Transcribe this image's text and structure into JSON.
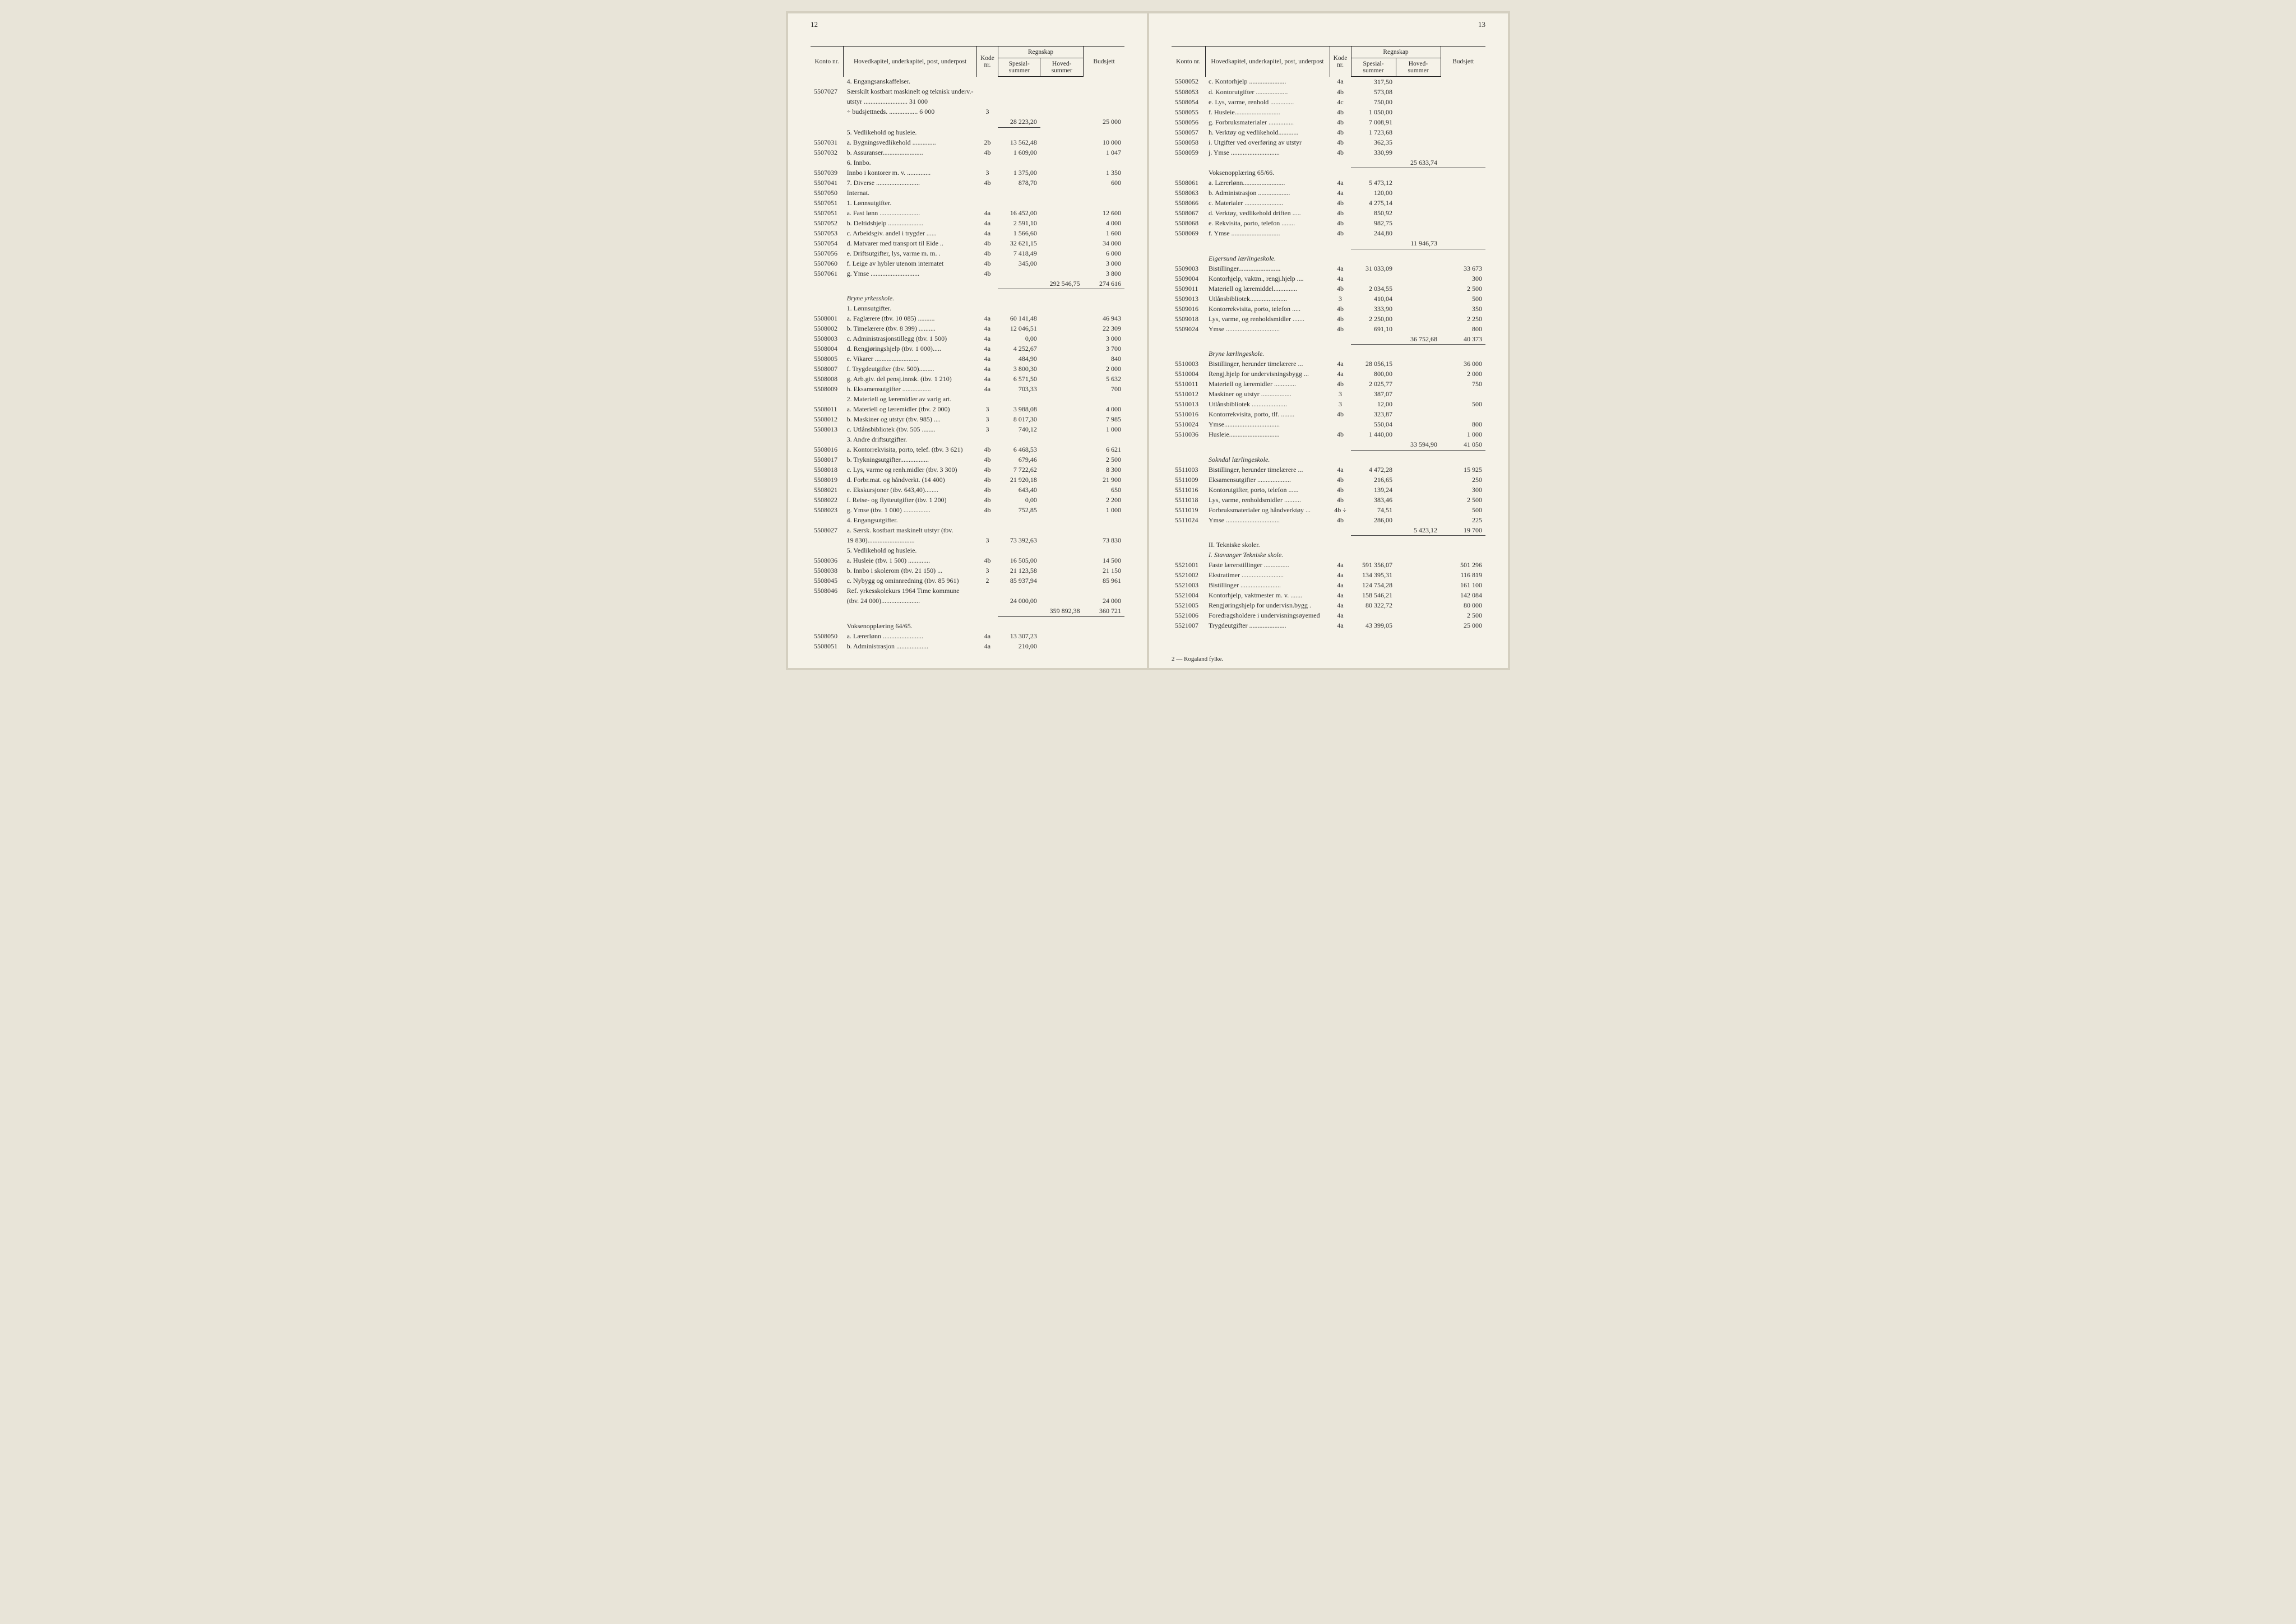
{
  "pageLeftNum": "12",
  "pageRightNum": "13",
  "headers": {
    "konto": "Konto\nnr.",
    "hoved": "Hovedkapitel, underkapitel, post, underpost",
    "kode": "Kode\nnr.",
    "regnskap": "Regnskap",
    "spesial": "Spesial-\nsummer",
    "hovedsum": "Hoved-\nsummer",
    "budsjett": "Budsjett"
  },
  "leftRows": [
    {
      "desc": "4. Engangsanskaffelser.",
      "type": "section"
    },
    {
      "konto": "5507027",
      "desc": "Særskilt kostbart maskinelt og teknisk underv.-",
      "type": "plain"
    },
    {
      "desc": "utstyr .......................... 31 000",
      "type": "plain",
      "indent": 1
    },
    {
      "desc": "÷ budsjettneds. ................. 6 000",
      "kode": "3",
      "type": "plain",
      "indent": 1
    },
    {
      "spesial": "28 223,20",
      "budsjett": "25 000",
      "type": "sum"
    },
    {
      "desc": "5. Vedlikehold og husleie.",
      "type": "section"
    },
    {
      "konto": "5507031",
      "desc": "a. Bygningsvedlikehold ..............",
      "kode": "2b",
      "spesial": "13 562,48",
      "budsjett": "10 000"
    },
    {
      "konto": "5507032",
      "desc": "b. Assuranser........................",
      "kode": "4b",
      "spesial": "1 609,00",
      "budsjett": "1 047"
    },
    {
      "desc": "6. Innbo.",
      "type": "section"
    },
    {
      "konto": "5507039",
      "desc": "Innbo i kontorer m. v. ..............",
      "kode": "3",
      "spesial": "1 375,00",
      "budsjett": "1 350"
    },
    {
      "konto": "5507041",
      "desc": "7. Diverse ..........................",
      "kode": "4b",
      "spesial": "878,70",
      "budsjett": "600"
    },
    {
      "konto": "5507050",
      "desc": "Internat.",
      "type": "plain"
    },
    {
      "konto": "5507051",
      "desc": "1. Lønnsutgifter.",
      "type": "plain"
    },
    {
      "konto": "5507051",
      "desc": "a. Fast lønn ........................",
      "kode": "4a",
      "spesial": "16 452,00",
      "budsjett": "12 600"
    },
    {
      "konto": "5507052",
      "desc": "b. Deltidshjelp .....................",
      "kode": "4a",
      "spesial": "2 591,10",
      "budsjett": "4 000"
    },
    {
      "konto": "5507053",
      "desc": "c. Arbeidsgiv. andel i trygder ......",
      "kode": "4a",
      "spesial": "1 566,60",
      "budsjett": "1 600"
    },
    {
      "konto": "5507054",
      "desc": "d. Matvarer med transport til Eide ..",
      "kode": "4b",
      "spesial": "32 621,15",
      "budsjett": "34 000"
    },
    {
      "konto": "5507056",
      "desc": "e. Driftsutgifter, lys, varme m. m. .",
      "kode": "4b",
      "spesial": "7 418,49",
      "budsjett": "6 000"
    },
    {
      "konto": "5507060",
      "desc": "f. Leige av hybler utenom internatet ",
      "kode": "4b",
      "spesial": "345,00",
      "budsjett": "3 000"
    },
    {
      "konto": "5507061",
      "desc": "g. Ymse .............................",
      "kode": "4b",
      "spesial": "",
      "budsjett": "3 800"
    },
    {
      "hovedsum": "292 546,75",
      "budsjett": "274 616",
      "type": "total"
    },
    {
      "type": "spacer"
    },
    {
      "desc": "Bryne yrkesskole.",
      "type": "italic"
    },
    {
      "desc": "1. Lønnsutgifter.",
      "type": "section"
    },
    {
      "konto": "5508001",
      "desc": "a. Faglærere (tbv. 10 085) ..........",
      "kode": "4a",
      "spesial": "60 141,48",
      "budsjett": "46 943"
    },
    {
      "konto": "5508002",
      "desc": "b. Timelærere (tbv. 8 399) ..........",
      "kode": "4a",
      "spesial": "12 046,51",
      "budsjett": "22 309"
    },
    {
      "konto": "5508003",
      "desc": "c. Administrasjonstillegg (tbv. 1 500)",
      "kode": "4a",
      "spesial": "0,00",
      "budsjett": "3 000"
    },
    {
      "konto": "5508004",
      "desc": "d. Rengjøringshjelp (tbv. 1 000).....",
      "kode": "4a",
      "spesial": "4 252,67",
      "budsjett": "3 700"
    },
    {
      "konto": "5508005",
      "desc": "e. Vikarer ..........................",
      "kode": "4a",
      "spesial": "484,90",
      "budsjett": "840"
    },
    {
      "konto": "5508007",
      "desc": "f. Trygdeutgifter (tbv. 500).........",
      "kode": "4a",
      "spesial": "3 800,30",
      "budsjett": "2 000"
    },
    {
      "konto": "5508008",
      "desc": "g. Arb.giv. del pensj.innsk. (tbv. 1 210)",
      "kode": "4a",
      "spesial": "6 571,50",
      "budsjett": "5 632"
    },
    {
      "konto": "5508009",
      "desc": "h. Eksamensutgifter .................",
      "kode": "4a",
      "spesial": "703,33",
      "budsjett": "700"
    },
    {
      "desc": "2. Materiell og læremidler av varig art.",
      "type": "section"
    },
    {
      "konto": "5508011",
      "desc": "a. Materiell og læremidler (tbv. 2 000)",
      "kode": "3",
      "spesial": "3 988,08",
      "budsjett": "4 000"
    },
    {
      "konto": "5508012",
      "desc": "b. Maskiner og utstyr (tbv. 985) ....",
      "kode": "3",
      "spesial": "8 017,30",
      "budsjett": "7 985"
    },
    {
      "konto": "5508013",
      "desc": "c. Utlånsbibliotek (tbv. 505 ........",
      "kode": "3",
      "spesial": "740,12",
      "budsjett": "1 000"
    },
    {
      "desc": "3. Andre driftsutgifter.",
      "type": "section"
    },
    {
      "konto": "5508016",
      "desc": "a. Kontorrekvisita, porto, telef. (tbv. 3 621)",
      "kode": "4b",
      "spesial": "6 468,53",
      "budsjett": "6 621"
    },
    {
      "konto": "5508017",
      "desc": "b. Trykningsutgifter.................",
      "kode": "4b",
      "spesial": "679,46",
      "budsjett": "2 500"
    },
    {
      "konto": "5508018",
      "desc": "c. Lys, varme og renh.midler (tbv. 3 300)",
      "kode": "4b",
      "spesial": "7 722,62",
      "budsjett": "8 300"
    },
    {
      "konto": "5508019",
      "desc": "d. Forbr.mat. og håndverkt. (14 400)",
      "kode": "4b",
      "spesial": "21 920,18",
      "budsjett": "21 900"
    },
    {
      "konto": "5508021",
      "desc": "e. Ekskursjoner (tbv. 643,40)........",
      "kode": "4b",
      "spesial": "643,40",
      "budsjett": "650"
    },
    {
      "konto": "5508022",
      "desc": "f. Reise- og flytteutgifter (tbv. 1 200)",
      "kode": "4b",
      "spesial": "0,00",
      "budsjett": "2 200"
    },
    {
      "konto": "5508023",
      "desc": "g. Ymse (tbv. 1 000) ................",
      "kode": "4b",
      "spesial": "752,85",
      "budsjett": "1 000"
    },
    {
      "desc": "4. Engangsutgifter.",
      "type": "section"
    },
    {
      "konto": "5508027",
      "desc": "a. Særsk. kostbart maskinelt utstyr (tbv.",
      "type": "plain"
    },
    {
      "desc": "19 830)............................",
      "kode": "3",
      "spesial": "73 392,63",
      "budsjett": "73 830",
      "indent": 2
    },
    {
      "desc": "5. Vedlikehold og husleie.",
      "type": "section"
    },
    {
      "konto": "5508036",
      "desc": "a. Husleie (tbv. 1 500) .............",
      "kode": "4b",
      "spesial": "16 505,00",
      "budsjett": "14 500"
    },
    {
      "konto": "5508038",
      "desc": "b. Innbo i skolerom (tbv. 21 150) ...",
      "kode": "3",
      "spesial": "21 123,58",
      "budsjett": "21 150"
    },
    {
      "konto": "5508045",
      "desc": "c. Nybygg og ominnredning (tbv. 85 961)",
      "kode": "2",
      "spesial": "85 937,94",
      "budsjett": "85 961"
    },
    {
      "konto": "5508046",
      "desc": "Ref. yrkesskolekurs 1964 Time kommune",
      "type": "plain"
    },
    {
      "desc": "(tbv. 24 000).......................",
      "spesial": "24 000,00",
      "budsjett": "24 000",
      "indent": 1
    },
    {
      "hovedsum": "359 892,38",
      "budsjett": "360 721",
      "type": "total"
    },
    {
      "type": "spacer"
    },
    {
      "desc": "Voksenopplæring 64/65.",
      "type": "section"
    },
    {
      "konto": "5508050",
      "desc": "a. Lærerlønn ........................",
      "kode": "4a",
      "spesial": "13 307,23"
    },
    {
      "konto": "5508051",
      "desc": "b. Administrasjon ...................",
      "kode": "4a",
      "spesial": "210,00"
    }
  ],
  "rightRows": [
    {
      "konto": "5508052",
      "desc": "c. Kontorhjelp ......................",
      "kode": "4a",
      "spesial": "317,50"
    },
    {
      "konto": "5508053",
      "desc": "d. Kontorutgifter ...................",
      "kode": "4b",
      "spesial": "573,08"
    },
    {
      "konto": "5508054",
      "desc": "e. Lys, varme, renhold ..............",
      "kode": "4c",
      "spesial": "750,00"
    },
    {
      "konto": "5508055",
      "desc": "f. Husleie...........................",
      "kode": "4b",
      "spesial": "1 050,00"
    },
    {
      "konto": "5508056",
      "desc": "g. Forbruksmaterialer ...............",
      "kode": "4b",
      "spesial": "7 008,91"
    },
    {
      "konto": "5508057",
      "desc": "h. Verktøy og vedlikehold............",
      "kode": "4b",
      "spesial": "1 723,68"
    },
    {
      "konto": "5508058",
      "desc": "i. Utgifter ved overføring av utstyr ",
      "kode": "4b",
      "spesial": "362,35"
    },
    {
      "konto": "5508059",
      "desc": "j. Ymse .............................",
      "kode": "4b",
      "spesial": "330,99"
    },
    {
      "hovedsum": "25 633,74",
      "type": "total"
    },
    {
      "desc": "Voksenopplæring 65/66.",
      "type": "section"
    },
    {
      "konto": "5508061",
      "desc": "a. Lærerlønn.........................",
      "kode": "4a",
      "spesial": "5 473,12"
    },
    {
      "konto": "5508063",
      "desc": "b. Administrasjon ...................",
      "kode": "4a",
      "spesial": "120,00"
    },
    {
      "konto": "5508066",
      "desc": "c. Materialer .......................",
      "kode": "4b",
      "spesial": "4 275,14"
    },
    {
      "konto": "5508067",
      "desc": "d. Verktøy, vedlikehold driften .....",
      "kode": "4b",
      "spesial": "850,92"
    },
    {
      "konto": "5508068",
      "desc": "e. Rekvisita, porto, telefon ........",
      "kode": "4b",
      "spesial": "982,75"
    },
    {
      "konto": "5508069",
      "desc": "f. Ymse .............................",
      "kode": "4b",
      "spesial": "244,80"
    },
    {
      "hovedsum": "11 946,73",
      "type": "total"
    },
    {
      "type": "spacer"
    },
    {
      "desc": "Eigersund lærlingeskole.",
      "type": "italic"
    },
    {
      "konto": "5509003",
      "desc": "Bistillinger.........................",
      "kode": "4a",
      "spesial": "31 033,09",
      "budsjett": "33 673"
    },
    {
      "konto": "5509004",
      "desc": "Kontorhjelp, vaktm., rengj.hjelp ....",
      "kode": "4a",
      "spesial": "",
      "budsjett": "300"
    },
    {
      "konto": "5509011",
      "desc": "Materiell og læremiddel..............",
      "kode": "4b",
      "spesial": "2 034,55",
      "budsjett": "2 500"
    },
    {
      "konto": "5509013",
      "desc": "Utlånsbibliotek......................",
      "kode": "3",
      "spesial": "410,04",
      "budsjett": "500"
    },
    {
      "konto": "5509016",
      "desc": "Kontorrekvisita, porto, telefon .....",
      "kode": "4b",
      "spesial": "333,90",
      "budsjett": "350"
    },
    {
      "konto": "5509018",
      "desc": "Lys, varme, og renholdsmidler .......",
      "kode": "4b",
      "spesial": "2 250,00",
      "budsjett": "2 250"
    },
    {
      "konto": "5509024",
      "desc": "Ymse ................................",
      "kode": "4b",
      "spesial": "691,10",
      "budsjett": "800"
    },
    {
      "hovedsum": "36 752,68",
      "budsjett": "40 373",
      "type": "total"
    },
    {
      "type": "spacer"
    },
    {
      "desc": "Bryne lærlingeskole.",
      "type": "italic"
    },
    {
      "konto": "5510003",
      "desc": "Bistillinger, herunder timelærere ...",
      "kode": "4a",
      "spesial": "28 056,15",
      "budsjett": "36 000"
    },
    {
      "konto": "5510004",
      "desc": "Rengj.hjelp for undervisningsbygg ...",
      "kode": "4a",
      "spesial": "800,00",
      "budsjett": "2 000"
    },
    {
      "konto": "5510011",
      "desc": "Materiell og læremidler .............",
      "kode": "4b",
      "spesial": "2 025,77",
      "budsjett": "750"
    },
    {
      "konto": "5510012",
      "desc": "Maskiner og utstyr ..................",
      "kode": "3",
      "spesial": "387,07"
    },
    {
      "konto": "5510013",
      "desc": "Utlånsbibliotek .....................",
      "kode": "3",
      "spesial": "12,00",
      "budsjett": "500"
    },
    {
      "konto": "5510016",
      "desc": "Kontorrekvisita, porto, tlf. ........",
      "kode": "4b",
      "spesial": "323,87"
    },
    {
      "konto": "5510024",
      "desc": "Ymse.................................",
      "spesial": "550,04",
      "budsjett": "800"
    },
    {
      "konto": "5510036",
      "desc": "Husleie..............................",
      "kode": "4b",
      "spesial": "1 440,00",
      "budsjett": "1 000"
    },
    {
      "hovedsum": "33 594,90",
      "budsjett": "41 050",
      "type": "total"
    },
    {
      "type": "spacer"
    },
    {
      "desc": "Sokndal lærlingeskole.",
      "type": "italic"
    },
    {
      "konto": "5511003",
      "desc": "Bistillinger, herunder timelærere ...",
      "kode": "4a",
      "spesial": "4 472,28",
      "budsjett": "15 925"
    },
    {
      "konto": "5511009",
      "desc": "Eksamensutgifter ....................",
      "kode": "4b",
      "spesial": "216,65",
      "budsjett": "250"
    },
    {
      "konto": "5511016",
      "desc": "Kontorutgifter, porto, telefon ......",
      "kode": "4b",
      "spesial": "139,24",
      "budsjett": "300"
    },
    {
      "konto": "5511018",
      "desc": "Lys, varme, renholdsmidler ..........",
      "kode": "4b",
      "spesial": "383,46",
      "budsjett": "2 500"
    },
    {
      "konto": "5511019",
      "desc": "Forbruksmaterialer og håndverktøy ...",
      "kode": "4b   ÷",
      "spesial": "74,51",
      "budsjett": "500"
    },
    {
      "konto": "5511024",
      "desc": "Ymse ................................",
      "kode": "4b",
      "spesial": "286,00",
      "budsjett": "225"
    },
    {
      "hovedsum": "5 423,12",
      "budsjett": "19 700",
      "type": "total"
    },
    {
      "type": "spacer"
    },
    {
      "desc": "II. Tekniske skoler.",
      "type": "section"
    },
    {
      "desc": "I. Stavanger Tekniske skole.",
      "type": "italic"
    },
    {
      "konto": "5521001",
      "desc": "Faste lærerstillinger ...............",
      "kode": "4a",
      "spesial": "591 356,07",
      "budsjett": "501 296"
    },
    {
      "konto": "5521002",
      "desc": "Ekstratimer .........................",
      "kode": "4a",
      "spesial": "134 395,31",
      "budsjett": "116 819"
    },
    {
      "konto": "5521003",
      "desc": "Bistillinger ........................",
      "kode": "4a",
      "spesial": "124 754,28",
      "budsjett": "161 100"
    },
    {
      "konto": "5521004",
      "desc": "Kontorhjelp, vaktmester m. v. .......",
      "kode": "4a",
      "spesial": "158 546,21",
      "budsjett": "142 084"
    },
    {
      "konto": "5521005",
      "desc": "Rengjøringshjelp for undervisn.bygg .",
      "kode": "4a",
      "spesial": "80 322,72",
      "budsjett": "80 000"
    },
    {
      "konto": "5521006",
      "desc": "Foredragsholdere i undervisningsøyemed",
      "kode": "4a",
      "spesial": "",
      "budsjett": "2 500"
    },
    {
      "konto": "5521007",
      "desc": "Trygdeutgifter ......................",
      "kode": "4a",
      "spesial": "43 399,05",
      "budsjett": "25 000"
    }
  ],
  "footer": "2 — Rogaland fylke."
}
